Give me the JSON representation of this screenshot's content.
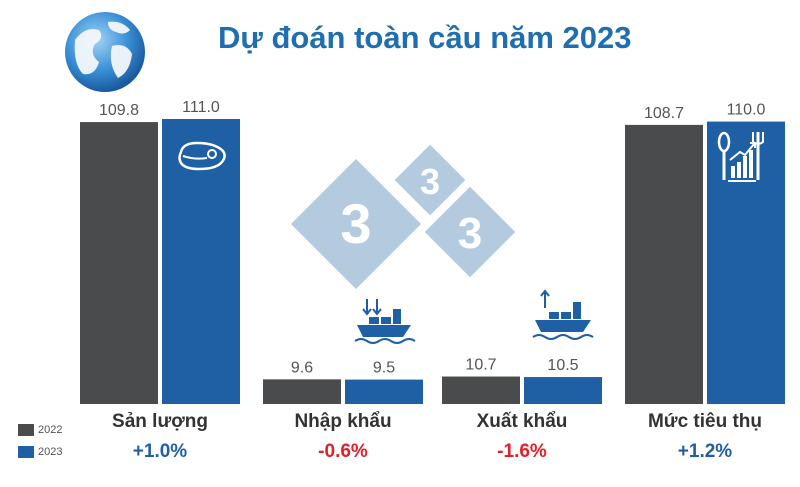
{
  "title": "Dự đoán toàn cầu năm 2023",
  "legend": [
    {
      "label": "2022",
      "color": "#4a4b4d"
    },
    {
      "label": "2023",
      "color": "#1f5fa4"
    }
  ],
  "watermark_text": "333",
  "icons": {
    "globe": "globe-icon",
    "meat": "meat-steak-icon",
    "import": "import-ship-icon",
    "export": "export-ship-icon",
    "consumption": "consumption-chart-icon"
  },
  "colors": {
    "bar_2022": "#4a4b4d",
    "bar_2023": "#1f5fa4",
    "positive": "#1f5fa4",
    "negative": "#e0202a",
    "title": "#1f6eb0"
  },
  "chart_data": {
    "type": "bar",
    "title": "Dự đoán toàn cầu năm 2023",
    "categories": [
      "Sản lượng",
      "Nhập khẩu",
      "Xuất khẩu",
      "Mức tiêu thụ"
    ],
    "series": [
      {
        "name": "2022",
        "values": [
          109.8,
          9.6,
          10.7,
          108.7
        ]
      },
      {
        "name": "2023",
        "values": [
          111.0,
          9.5,
          10.5,
          110.0
        ]
      }
    ],
    "value_labels": {
      "2022": [
        "109.8",
        "9.6",
        "10.7",
        "108.7"
      ],
      "2023": [
        "111.0",
        "9.5",
        "10.5",
        "110.0"
      ]
    },
    "changes": [
      "+1.0%",
      "-0.6%",
      "-1.6%",
      "+1.2%"
    ],
    "change_sign": [
      "positive",
      "negative",
      "negative",
      "positive"
    ],
    "ylim": [
      0,
      111
    ],
    "legend_position": "bottom-left",
    "grid": false
  }
}
